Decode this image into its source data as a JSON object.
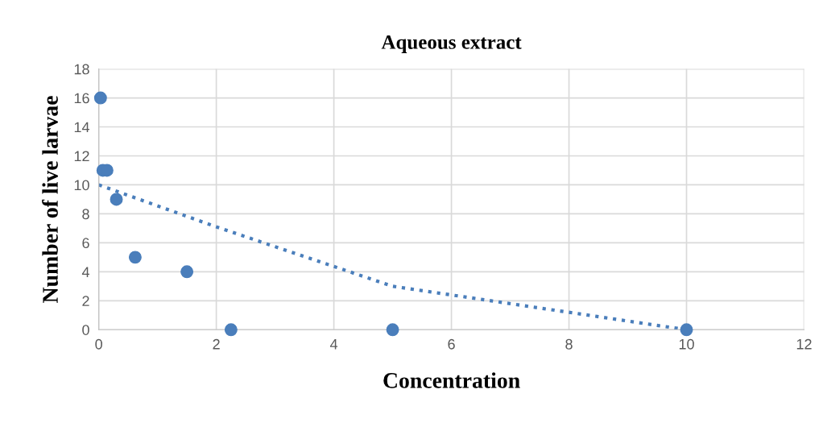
{
  "chart_data": {
    "type": "scatter",
    "title": "Aqueous extract",
    "xlabel": "Concentration",
    "ylabel": "Number of live larvae",
    "xlim": [
      0,
      12
    ],
    "xticks": [
      0,
      2,
      4,
      6,
      8,
      10,
      12
    ],
    "ylim": [
      0,
      18
    ],
    "yticks": [
      0,
      2,
      4,
      6,
      8,
      10,
      12,
      14,
      16,
      18
    ],
    "grid": true,
    "marker": "circle",
    "series": [
      {
        "color": "#4a7ebb",
        "x": [
          0.03,
          0.07,
          0.14,
          0.3,
          0.62,
          1.5,
          2.25,
          5,
          10
        ],
        "values": [
          16,
          11,
          11,
          9,
          5,
          4,
          0,
          0,
          0
        ]
      },
      {
        "type": "line",
        "color": "#4a7ebb",
        "line_style": "dotted",
        "marker": "none",
        "x": [
          0,
          2,
          5,
          10
        ],
        "values": [
          10,
          7.1,
          3,
          0
        ]
      }
    ]
  }
}
